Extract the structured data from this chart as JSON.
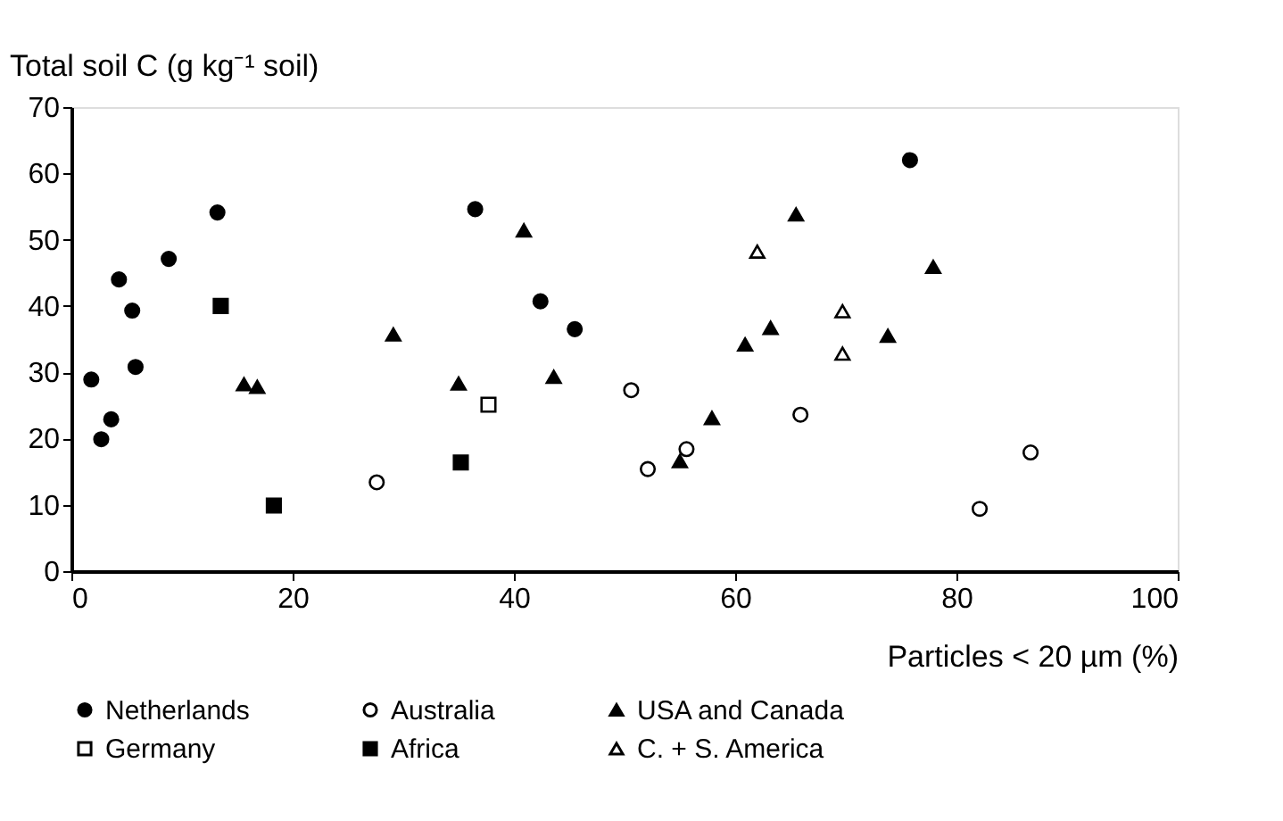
{
  "chart_data": {
    "type": "scatter",
    "xlabel": "Particles < 20 µm (%)",
    "ylabel": "Total soil C (g kg⁻¹ soil)",
    "xlim": [
      0,
      100
    ],
    "xticks": [
      0,
      20,
      40,
      60,
      80,
      100
    ],
    "ylim": [
      0,
      70
    ],
    "yticks": [
      0,
      10,
      20,
      30,
      40,
      50,
      60,
      70
    ],
    "grid": false,
    "legend": "bottom",
    "series": [
      {
        "name": "Netherlands",
        "color": "#000000",
        "marker": "circle",
        "x": [
          1.8,
          2.7,
          3.6,
          4.3,
          5.5,
          5.8,
          8.8,
          13.2,
          36.5,
          42.4,
          45.5,
          75.8
        ],
        "values": [
          28.9,
          19.9,
          22.9,
          44.0,
          39.3,
          30.8,
          47.1,
          54.1,
          54.6,
          40.7,
          36.5,
          62.0
        ]
      },
      {
        "name": "Germany",
        "color": "#ffffff",
        "marker": "square",
        "x": [
          37.7
        ],
        "values": [
          25.1
        ]
      },
      {
        "name": "Australia",
        "color": "#ffffff",
        "marker": "circle",
        "x": [
          27.6,
          50.6,
          52.1,
          55.6,
          65.9,
          82.1,
          86.7
        ],
        "values": [
          13.4,
          27.3,
          15.4,
          18.4,
          23.6,
          9.4,
          17.9
        ]
      },
      {
        "name": "Africa",
        "color": "#000000",
        "marker": "square",
        "x": [
          13.5,
          18.3,
          35.2
        ],
        "values": [
          40.0,
          9.9,
          16.4
        ]
      },
      {
        "name": "USA and Canada",
        "color": "#000000",
        "marker": "triangle",
        "x": [
          15.6,
          16.8,
          29.1,
          35.0,
          40.9,
          43.6,
          55.0,
          57.9,
          60.9,
          63.2,
          65.5,
          73.8,
          77.9
        ],
        "values": [
          28.2,
          27.8,
          35.7,
          28.3,
          51.4,
          29.3,
          16.6,
          23.1,
          34.2,
          36.7,
          53.8,
          35.5,
          45.9
        ]
      },
      {
        "name": "C. + S. America",
        "color": "#ffffff",
        "marker": "triangle",
        "x": [
          62.0,
          69.7,
          69.7
        ],
        "values": [
          48.2,
          39.2,
          32.8
        ]
      }
    ]
  }
}
